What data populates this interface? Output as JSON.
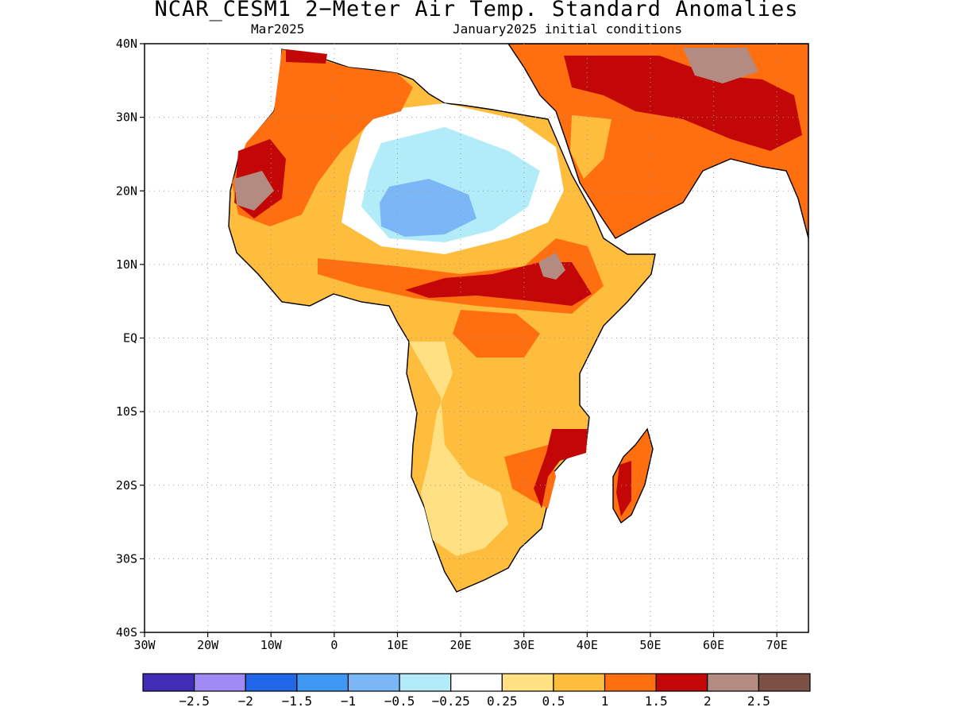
{
  "title": "NCAR_CESM1 2−Meter Air Temp. Standard Anomalies",
  "subtitle_left": "Mar2025",
  "subtitle_right": "January2025 initial conditions",
  "lat_labels": [
    "40N",
    "30N",
    "20N",
    "10N",
    "EQ",
    "10S",
    "20S",
    "30S",
    "40S"
  ],
  "lon_labels": [
    "30W",
    "20W",
    "10W",
    "0",
    "10E",
    "20E",
    "30E",
    "40E",
    "50E",
    "60E",
    "70E"
  ],
  "colorbar": {
    "colors": [
      "#3f2db6",
      "#9f89f5",
      "#2266e8",
      "#3e97f2",
      "#7bb7f7",
      "#b2ecf9",
      "#ffffff",
      "#ffe082",
      "#ffbd3d",
      "#ff6f10",
      "#c20706",
      "#b48b80",
      "#7b5045"
    ],
    "labels": [
      "−2.5",
      "−2",
      "−1.5",
      "−1",
      "−0.5",
      "−0.25",
      "0.25",
      "0.5",
      "1",
      "1.5",
      "2",
      "2.5"
    ]
  },
  "map_data": {
    "extent": {
      "lon": [
        -30,
        75
      ],
      "lat": [
        -40,
        40
      ]
    },
    "features": [
      "Africa",
      "Arabian Peninsula",
      "Madagascar",
      "Mediterranean coast",
      "Indian subcontinent edge"
    ],
    "anomaly_regions": [
      {
        "region": "Central Sahara",
        "category": "-1 to -0.5"
      },
      {
        "region": "Northern Sahara",
        "category": "-0.5 to -0.25"
      },
      {
        "region": "Arabian Peninsula",
        "category": "1 to 2"
      },
      {
        "region": "Sahel belt",
        "category": "1 to 2.5"
      },
      {
        "region": "Ethiopian highlands",
        "category": "2 to 2.5"
      },
      {
        "region": "Southern Africa",
        "category": "0.25 to 1.5"
      },
      {
        "region": "Madagascar",
        "category": "1 to 2.5"
      },
      {
        "region": "Iran / Middle East",
        "category": "1.5 to 2.5"
      }
    ]
  }
}
